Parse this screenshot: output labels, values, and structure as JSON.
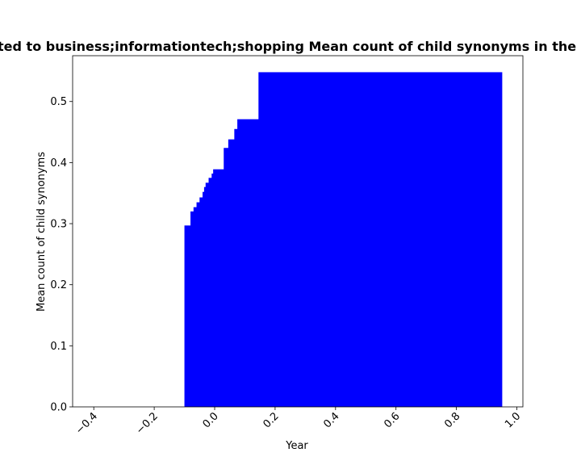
{
  "chart_data": {
    "type": "bar",
    "title": "Number of words related to business;informationtech;shopping Mean count of child synonyms in the network for each year",
    "xlabel": "Year",
    "ylabel": "Mean count of child synonyms",
    "xlim": [
      -0.47,
      1.02
    ],
    "ylim": [
      0.0,
      0.575
    ],
    "xticks": [
      -0.4,
      -0.2,
      0.0,
      0.2,
      0.4,
      0.6,
      0.8,
      1.0
    ],
    "xtick_labels": [
      "−0.4",
      "−0.2",
      "0.0",
      "0.2",
      "0.4",
      "0.6",
      "0.8",
      "1.0"
    ],
    "yticks": [
      0.0,
      0.1,
      0.2,
      0.3,
      0.4,
      0.5
    ],
    "ytick_labels": [
      "0.0",
      "0.1",
      "0.2",
      "0.3",
      "0.4",
      "0.5"
    ],
    "bar_color": "#0000ff",
    "bar_right": 0.95,
    "grid": false,
    "steps": [
      {
        "x": -0.1,
        "y": 0.297
      },
      {
        "x": -0.08,
        "y": 0.32
      },
      {
        "x": -0.07,
        "y": 0.327
      },
      {
        "x": -0.06,
        "y": 0.335
      },
      {
        "x": -0.05,
        "y": 0.343
      },
      {
        "x": -0.04,
        "y": 0.352
      },
      {
        "x": -0.035,
        "y": 0.36
      },
      {
        "x": -0.03,
        "y": 0.367
      },
      {
        "x": -0.02,
        "y": 0.375
      },
      {
        "x": -0.01,
        "y": 0.382
      },
      {
        "x": -0.005,
        "y": 0.389
      },
      {
        "x": 0.03,
        "y": 0.424
      },
      {
        "x": 0.045,
        "y": 0.438
      },
      {
        "x": 0.065,
        "y": 0.455
      },
      {
        "x": 0.075,
        "y": 0.471
      },
      {
        "x": 0.145,
        "y": 0.548
      }
    ]
  }
}
